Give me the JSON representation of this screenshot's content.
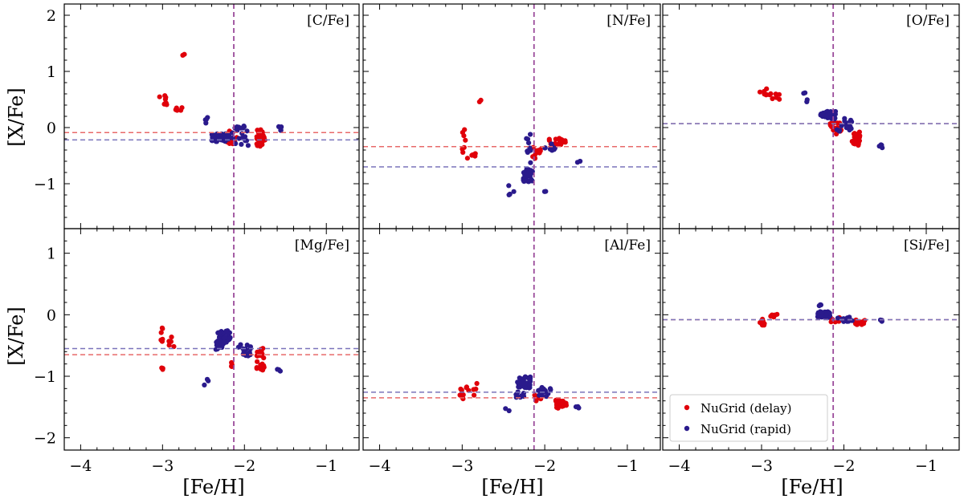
{
  "colors": {
    "delay": "#e0000a",
    "rapid": "#2a1a8c",
    "delay_line": "#e86a6a",
    "rapid_line": "#7a74bb",
    "vline": "#9a4a9a"
  },
  "figure": {
    "ylabel": "[X/Fe]",
    "xlabel": "[Fe/H]",
    "legend": [
      "NuGrid (delay)",
      "NuGrid (rapid)"
    ]
  },
  "chart_data": [
    {
      "type": "scatter",
      "label": "[C/Fe]",
      "xlim": [
        -4.2,
        -0.6
      ],
      "ylim": [
        -1.8,
        2.2
      ],
      "xticks": [
        -4,
        -3,
        -2,
        -1
      ],
      "yticks": [
        -1,
        0,
        1,
        2
      ],
      "vline": -2.13,
      "hline_delay": -0.09,
      "hline_rapid": -0.22,
      "series": [
        {
          "name": "NuGrid (delay)",
          "clusters": [
            [
              -2.99,
              0.47,
              0.07,
              0.1,
              8
            ],
            [
              -2.8,
              0.32,
              0.05,
              0.05,
              5
            ],
            [
              -2.75,
              1.29,
              0.02,
              0.02,
              2
            ],
            [
              -2.17,
              -0.17,
              0.08,
              0.12,
              18
            ],
            [
              -1.8,
              -0.22,
              0.05,
              0.2,
              26
            ]
          ]
        },
        {
          "name": "NuGrid (rapid)",
          "clusters": [
            [
              -2.3,
              -0.18,
              0.12,
              0.07,
              45
            ],
            [
              -2.05,
              -0.15,
              0.1,
              0.18,
              22
            ],
            [
              -1.57,
              -0.02,
              0.03,
              0.05,
              5
            ],
            [
              -2.45,
              0.18,
              0.03,
              0.12,
              4
            ]
          ]
        }
      ]
    },
    {
      "type": "scatter",
      "label": "[N/Fe]",
      "xlim": [
        -4.2,
        -0.6
      ],
      "ylim": [
        -1.8,
        2.2
      ],
      "xticks": [
        -4,
        -3,
        -2,
        -1
      ],
      "yticks": [
        -1,
        0,
        1,
        2
      ],
      "vline": -2.13,
      "hline_delay": -0.34,
      "hline_rapid": -0.7,
      "series": [
        {
          "name": "NuGrid (delay)",
          "clusters": [
            [
              -2.98,
              -0.2,
              0.03,
              0.2,
              6
            ],
            [
              -2.9,
              -0.5,
              0.1,
              0.06,
              6
            ],
            [
              -2.78,
              0.47,
              0.02,
              0.02,
              2
            ],
            [
              -2.1,
              -0.45,
              0.05,
              0.1,
              12
            ],
            [
              -1.85,
              -0.25,
              0.1,
              0.06,
              18
            ]
          ]
        },
        {
          "name": "NuGrid (rapid)",
          "clusters": [
            [
              -2.2,
              -0.85,
              0.06,
              0.12,
              35
            ],
            [
              -2.2,
              -0.4,
              0.03,
              0.3,
              10
            ],
            [
              -2.4,
              -1.1,
              0.05,
              0.1,
              4
            ],
            [
              -1.95,
              -0.35,
              0.08,
              0.07,
              10
            ],
            [
              -1.6,
              -0.6,
              0.03,
              0.02,
              2
            ],
            [
              -2.0,
              -1.15,
              0.02,
              0.02,
              2
            ]
          ]
        }
      ]
    },
    {
      "type": "scatter",
      "label": "[O/Fe]",
      "xlim": [
        -4.2,
        -0.6
      ],
      "ylim": [
        -1.8,
        2.2
      ],
      "xticks": [
        -4,
        -3,
        -2,
        -1
      ],
      "yticks": [
        -1,
        0,
        1,
        2
      ],
      "vline": -2.13,
      "hline_delay": 0.07,
      "hline_rapid": 0.07,
      "series": [
        {
          "name": "NuGrid (delay)",
          "clusters": [
            [
              -2.95,
              0.65,
              0.07,
              0.07,
              8
            ],
            [
              -2.8,
              0.55,
              0.08,
              0.05,
              5
            ],
            [
              -2.1,
              0.0,
              0.08,
              0.12,
              15
            ],
            [
              -1.85,
              -0.2,
              0.05,
              0.12,
              22
            ]
          ]
        },
        {
          "name": "NuGrid (rapid)",
          "clusters": [
            [
              -2.2,
              0.22,
              0.1,
              0.07,
              35
            ],
            [
              -2.0,
              0.05,
              0.1,
              0.12,
              20
            ],
            [
              -1.55,
              -0.33,
              0.02,
              0.03,
              4
            ],
            [
              -2.45,
              0.55,
              0.05,
              0.1,
              4
            ]
          ]
        }
      ]
    },
    {
      "type": "scatter",
      "label": "[Mg/Fe]",
      "xlim": [
        -4.2,
        -0.6
      ],
      "ylim": [
        -2.2,
        1.4
      ],
      "xticks": [
        -4,
        -3,
        -2,
        -1
      ],
      "yticks": [
        -2,
        -1,
        0,
        1
      ],
      "vline": -2.13,
      "hline_delay": -0.65,
      "hline_rapid": -0.55,
      "series": [
        {
          "name": "NuGrid (delay)",
          "clusters": [
            [
              -3.0,
              -0.3,
              0.02,
              0.2,
              6
            ],
            [
              -3.0,
              -0.87,
              0.02,
              0.03,
              3
            ],
            [
              -2.9,
              -0.45,
              0.05,
              0.1,
              5
            ],
            [
              -2.12,
              -0.82,
              0.04,
              0.05,
              5
            ],
            [
              -1.8,
              -0.7,
              0.05,
              0.2,
              24
            ]
          ]
        },
        {
          "name": "NuGrid (rapid)",
          "clusters": [
            [
              -2.25,
              -0.35,
              0.08,
              0.1,
              40
            ],
            [
              -2.3,
              -0.5,
              0.05,
              0.07,
              15
            ],
            [
              -2.0,
              -0.58,
              0.08,
              0.1,
              16
            ],
            [
              -1.58,
              -0.9,
              0.02,
              0.02,
              3
            ],
            [
              -2.45,
              -1.05,
              0.05,
              0.1,
              3
            ]
          ]
        }
      ]
    },
    {
      "type": "scatter",
      "label": "[Al/Fe]",
      "xlim": [
        -4.2,
        -0.6
      ],
      "ylim": [
        -2.2,
        1.4
      ],
      "xticks": [
        -4,
        -3,
        -2,
        -1
      ],
      "yticks": [
        -2,
        -1,
        0,
        1
      ],
      "vline": -2.13,
      "hline_delay": -1.35,
      "hline_rapid": -1.26,
      "series": [
        {
          "name": "NuGrid (delay)",
          "clusters": [
            [
              -3.0,
              -1.35,
              0.03,
              0.15,
              8
            ],
            [
              -2.88,
              -1.2,
              0.07,
              0.12,
              7
            ],
            [
              -2.1,
              -1.35,
              0.06,
              0.06,
              8
            ],
            [
              -1.8,
              -1.45,
              0.07,
              0.07,
              26
            ]
          ]
        },
        {
          "name": "NuGrid (rapid)",
          "clusters": [
            [
              -2.25,
              -1.1,
              0.08,
              0.1,
              40
            ],
            [
              -2.3,
              -1.3,
              0.05,
              0.05,
              12
            ],
            [
              -2.0,
              -1.25,
              0.08,
              0.08,
              14
            ],
            [
              -1.6,
              -1.5,
              0.03,
              0.02,
              3
            ],
            [
              -2.45,
              -1.55,
              0.03,
              0.03,
              2
            ]
          ]
        }
      ]
    },
    {
      "type": "scatter",
      "label": "[Si/Fe]",
      "xlim": [
        -4.2,
        -0.6
      ],
      "ylim": [
        -2.2,
        1.4
      ],
      "xticks": [
        -4,
        -3,
        -2,
        -1
      ],
      "yticks": [
        -2,
        -1,
        0,
        1
      ],
      "vline": -2.13,
      "hline_delay": -0.08,
      "hline_rapid": -0.08,
      "series": [
        {
          "name": "NuGrid (delay)",
          "clusters": [
            [
              -3.0,
              -0.12,
              0.04,
              0.05,
              8
            ],
            [
              -2.85,
              -0.02,
              0.06,
              0.03,
              6
            ],
            [
              -2.1,
              -0.08,
              0.06,
              0.04,
              10
            ],
            [
              -1.8,
              -0.12,
              0.06,
              0.04,
              22
            ]
          ]
        },
        {
          "name": "NuGrid (rapid)",
          "clusters": [
            [
              -2.25,
              0.0,
              0.08,
              0.05,
              40
            ],
            [
              -2.0,
              -0.07,
              0.1,
              0.04,
              14
            ],
            [
              -2.3,
              0.15,
              0.04,
              0.04,
              3
            ],
            [
              -1.55,
              -0.1,
              0.02,
              0.02,
              3
            ]
          ]
        }
      ]
    }
  ]
}
